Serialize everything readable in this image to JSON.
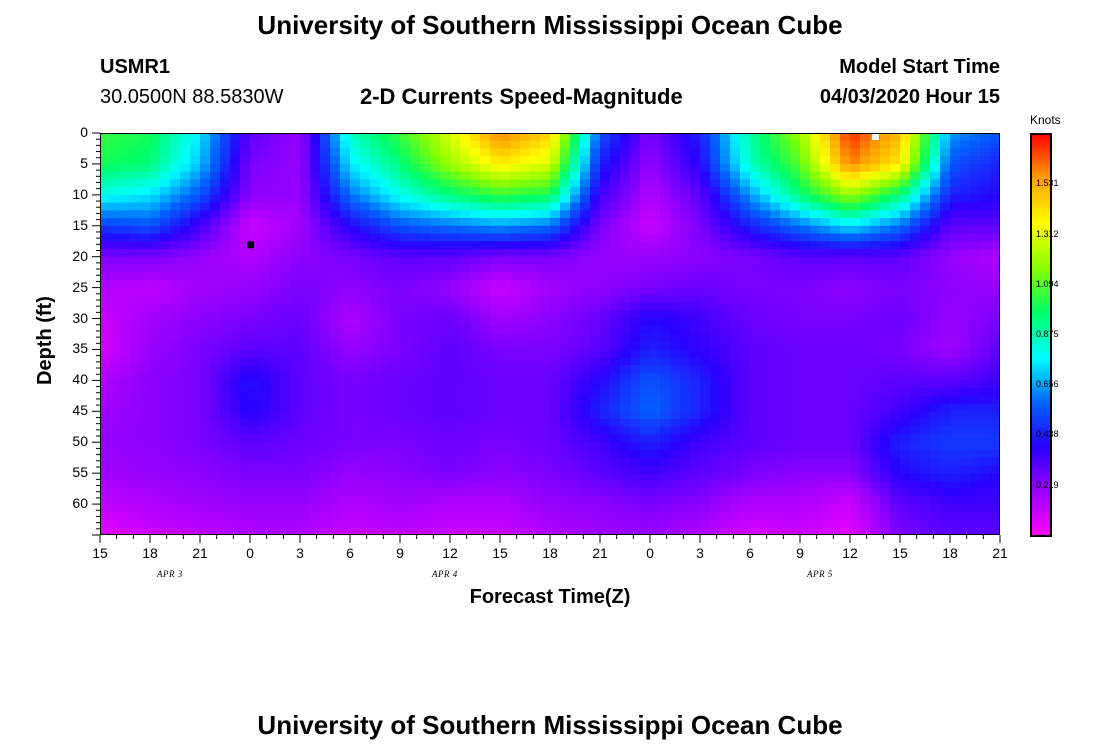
{
  "page": {
    "title_top": "University of Southern Mississippi Ocean Cube",
    "title_bottom": "University of Southern Mississippi Ocean Cube",
    "station": "USMR1",
    "location": "30.0500N 88.5830W",
    "product": "2-D Currents Speed-Magnitude",
    "model_start_label": "Model Start Time",
    "model_start_value": "04/03/2020 Hour 15"
  },
  "colors": {
    "scale": [
      "#ff00ff",
      "#9a00ff",
      "#2a00ff",
      "#0066ff",
      "#00ffff",
      "#00ff66",
      "#88ff00",
      "#ffff00",
      "#ffa000",
      "#ff0000"
    ],
    "marker": "#000000"
  },
  "chart_data": {
    "type": "heatmap",
    "title": "2-D Currents Speed-Magnitude",
    "xlabel": "Forecast Time(Z)",
    "ylabel": "Depth (ft)",
    "x_tick_labels": [
      "15",
      "18",
      "21",
      "0",
      "3",
      "6",
      "9",
      "12",
      "15",
      "18",
      "21",
      "0",
      "3",
      "6",
      "9",
      "12",
      "15",
      "18",
      "21"
    ],
    "x_hours_since_start": [
      0,
      3,
      6,
      9,
      12,
      15,
      18,
      21,
      24,
      27,
      30,
      33,
      36,
      39,
      42,
      45,
      48,
      51,
      54
    ],
    "date_labels": [
      {
        "text": "APR 3",
        "x_hours": 4.5
      },
      {
        "text": "APR 4",
        "x_hours": 21
      },
      {
        "text": "APR 5",
        "x_hours": 43.5
      }
    ],
    "y_ticks": [
      0,
      5,
      10,
      15,
      20,
      25,
      30,
      35,
      40,
      45,
      50,
      55,
      60
    ],
    "ylim": [
      0,
      65
    ],
    "y_inverted": true,
    "colorbar": {
      "unit": "Knots",
      "ticks": [
        0.219,
        0.438,
        0.656,
        0.875,
        1.094,
        1.312,
        1.531
      ],
      "range": [
        0,
        1.75
      ]
    },
    "value_grid": {
      "x_hours": [
        0,
        3,
        6,
        9,
        12,
        15,
        18,
        21,
        24,
        27,
        30,
        33,
        36,
        39,
        42,
        45,
        48,
        51,
        54
      ],
      "depths_ft": [
        0,
        5,
        10,
        15,
        20,
        25,
        30,
        35,
        40,
        45,
        50,
        55,
        60,
        65
      ],
      "knots": [
        [
          1.05,
          1.0,
          0.75,
          0.3,
          0.2,
          0.85,
          1.05,
          1.3,
          1.6,
          1.45,
          0.55,
          0.25,
          0.45,
          0.9,
          1.2,
          1.7,
          1.5,
          0.65,
          0.55
        ],
        [
          1.0,
          0.95,
          0.7,
          0.25,
          0.2,
          0.75,
          0.95,
          1.2,
          1.4,
          1.3,
          0.45,
          0.2,
          0.4,
          0.85,
          1.1,
          1.6,
          1.4,
          0.55,
          0.45
        ],
        [
          0.8,
          0.75,
          0.55,
          0.22,
          0.2,
          0.6,
          0.8,
          0.95,
          1.05,
          1.0,
          0.35,
          0.15,
          0.3,
          0.65,
          0.95,
          1.2,
          0.95,
          0.45,
          0.4
        ],
        [
          0.5,
          0.55,
          0.35,
          0.1,
          0.18,
          0.4,
          0.55,
          0.6,
          0.65,
          0.6,
          0.25,
          0.1,
          0.25,
          0.45,
          0.6,
          0.75,
          0.6,
          0.3,
          0.3
        ],
        [
          0.25,
          0.25,
          0.2,
          0.15,
          0.22,
          0.25,
          0.3,
          0.3,
          0.25,
          0.25,
          0.2,
          0.2,
          0.22,
          0.25,
          0.3,
          0.3,
          0.3,
          0.2,
          0.15
        ],
        [
          0.15,
          0.12,
          0.18,
          0.2,
          0.25,
          0.22,
          0.25,
          0.2,
          0.1,
          0.18,
          0.22,
          0.25,
          0.28,
          0.25,
          0.25,
          0.22,
          0.25,
          0.22,
          0.2
        ],
        [
          0.1,
          0.18,
          0.22,
          0.25,
          0.28,
          0.15,
          0.25,
          0.28,
          0.18,
          0.22,
          0.28,
          0.4,
          0.35,
          0.28,
          0.25,
          0.25,
          0.28,
          0.2,
          0.25
        ],
        [
          0.08,
          0.2,
          0.25,
          0.3,
          0.3,
          0.2,
          0.25,
          0.3,
          0.25,
          0.25,
          0.3,
          0.45,
          0.38,
          0.3,
          0.28,
          0.28,
          0.25,
          0.18,
          0.3
        ],
        [
          0.15,
          0.22,
          0.25,
          0.42,
          0.3,
          0.25,
          0.28,
          0.3,
          0.28,
          0.28,
          0.4,
          0.55,
          0.45,
          0.3,
          0.28,
          0.28,
          0.3,
          0.3,
          0.35
        ],
        [
          0.18,
          0.22,
          0.25,
          0.4,
          0.3,
          0.25,
          0.28,
          0.3,
          0.28,
          0.28,
          0.45,
          0.58,
          0.45,
          0.3,
          0.28,
          0.28,
          0.35,
          0.45,
          0.45
        ],
        [
          0.2,
          0.22,
          0.25,
          0.3,
          0.28,
          0.25,
          0.25,
          0.28,
          0.25,
          0.28,
          0.35,
          0.45,
          0.35,
          0.3,
          0.28,
          0.28,
          0.45,
          0.5,
          0.5
        ],
        [
          0.18,
          0.2,
          0.22,
          0.25,
          0.25,
          0.2,
          0.22,
          0.25,
          0.22,
          0.25,
          0.3,
          0.35,
          0.3,
          0.25,
          0.22,
          0.22,
          0.4,
          0.45,
          0.4
        ],
        [
          0.12,
          0.15,
          0.18,
          0.2,
          0.2,
          0.15,
          0.18,
          0.15,
          0.15,
          0.2,
          0.22,
          0.25,
          0.22,
          0.15,
          0.15,
          0.1,
          0.3,
          0.35,
          0.35
        ],
        [
          0.05,
          0.1,
          0.12,
          0.15,
          0.15,
          0.1,
          0.12,
          0.1,
          0.1,
          0.15,
          0.18,
          0.2,
          0.15,
          0.08,
          0.1,
          0.05,
          0.25,
          0.3,
          0.3
        ]
      ]
    },
    "markers": [
      {
        "x_hours": 9,
        "depth_ft": 18,
        "color": "#000000"
      },
      {
        "x_hours": 46.5,
        "depth_ft": 0,
        "color": "#ffffff"
      }
    ]
  }
}
